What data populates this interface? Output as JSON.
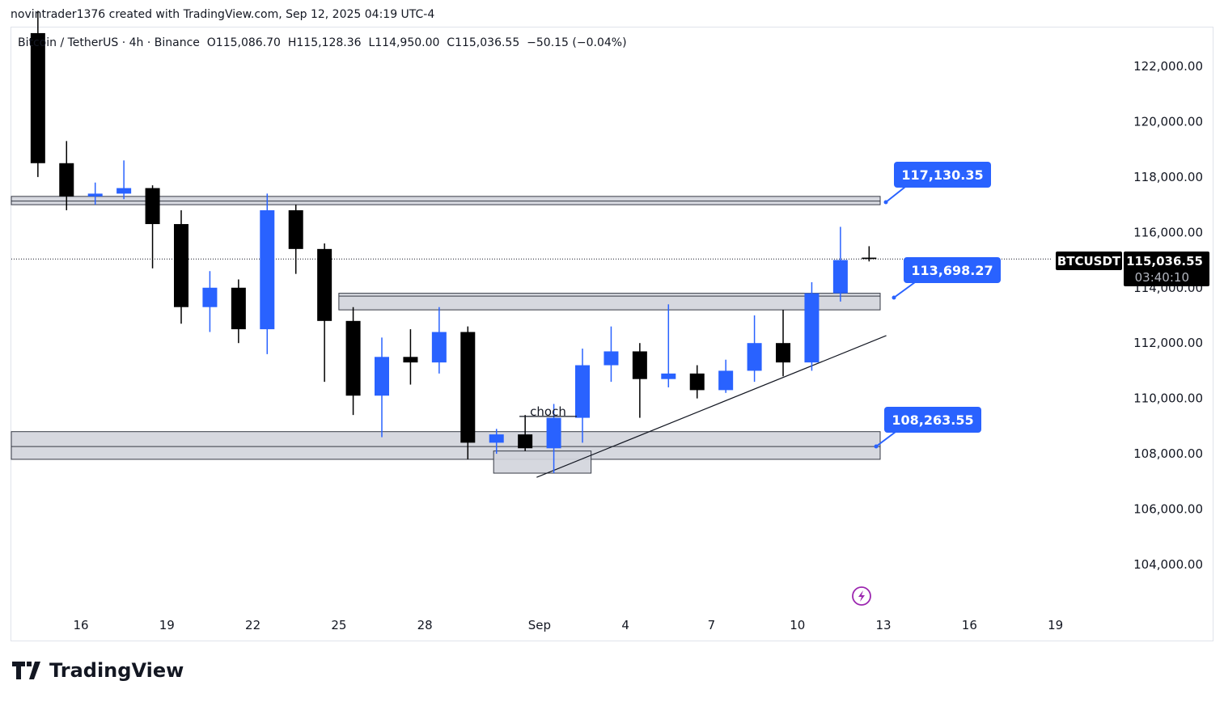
{
  "attribution": "novintrader1376 created with TradingView.com, Sep 12, 2025 04:19 UTC-4",
  "legend": "Bitcoin / TetherUS · 4h · Binance  O115,086.70  H115,128.36  L114,950.00  C115,036.55  −50.15 (−0.04%)",
  "brand": "TradingView",
  "colors": {
    "up": "#2962ff",
    "down": "#000000",
    "callout": "#2962ff",
    "zone": "#d1d4dc",
    "icon": "#9c27b0"
  },
  "chart_data": {
    "type": "candlestick",
    "symbol": "BTCUSDT",
    "interval": "4h (shown aggregated daily)",
    "last_price": "115,036.55",
    "countdown": "03:40:10",
    "y_ticks": [
      "122,000.00",
      "120,000.00",
      "118,000.00",
      "116,000.00",
      "114,000.00",
      "112,000.00",
      "110,000.00",
      "108,000.00",
      "106,000.00",
      "104,000.00"
    ],
    "y_tick_values": [
      122000,
      120000,
      118000,
      116000,
      114000,
      112000,
      110000,
      108000,
      106000,
      104000
    ],
    "x_ticks": [
      {
        "label": "16",
        "day": 16
      },
      {
        "label": "19",
        "day": 19
      },
      {
        "label": "22",
        "day": 22
      },
      {
        "label": "25",
        "day": 25
      },
      {
        "label": "28",
        "day": 28
      },
      {
        "label": "Sep",
        "day": 32
      },
      {
        "label": "4",
        "day": 35
      },
      {
        "label": "7",
        "day": 38
      },
      {
        "label": "10",
        "day": 41
      },
      {
        "label": "13",
        "day": 44
      },
      {
        "label": "16",
        "day": 47
      },
      {
        "label": "19",
        "day": 50
      }
    ],
    "candles": [
      {
        "day": 14,
        "o": 123200,
        "h": 124000,
        "l": 118000,
        "c": 118500
      },
      {
        "day": 15,
        "o": 118500,
        "h": 119300,
        "l": 116800,
        "c": 117300
      },
      {
        "day": 16,
        "o": 117300,
        "h": 117800,
        "l": 117000,
        "c": 117400
      },
      {
        "day": 17,
        "o": 117400,
        "h": 118600,
        "l": 117200,
        "c": 117600
      },
      {
        "day": 18,
        "o": 117600,
        "h": 117700,
        "l": 114700,
        "c": 116300
      },
      {
        "day": 19,
        "o": 116300,
        "h": 116800,
        "l": 112700,
        "c": 113300
      },
      {
        "day": 20,
        "o": 113300,
        "h": 114600,
        "l": 112400,
        "c": 114000
      },
      {
        "day": 21,
        "o": 114000,
        "h": 114300,
        "l": 112000,
        "c": 112500
      },
      {
        "day": 22,
        "o": 112500,
        "h": 117400,
        "l": 111600,
        "c": 116800
      },
      {
        "day": 23,
        "o": 116800,
        "h": 117000,
        "l": 114500,
        "c": 115400
      },
      {
        "day": 24,
        "o": 115400,
        "h": 115600,
        "l": 110600,
        "c": 112800
      },
      {
        "day": 25,
        "o": 112800,
        "h": 113300,
        "l": 109400,
        "c": 110100
      },
      {
        "day": 26,
        "o": 110100,
        "h": 112200,
        "l": 108600,
        "c": 111500
      },
      {
        "day": 27,
        "o": 111500,
        "h": 112500,
        "l": 110500,
        "c": 111300
      },
      {
        "day": 28,
        "o": 111300,
        "h": 113300,
        "l": 110900,
        "c": 112400
      },
      {
        "day": 29,
        "o": 112400,
        "h": 112600,
        "l": 107800,
        "c": 108400
      },
      {
        "day": 30,
        "o": 108400,
        "h": 108900,
        "l": 108000,
        "c": 108700
      },
      {
        "day": 31,
        "o": 108700,
        "h": 109400,
        "l": 108100,
        "c": 108200
      },
      {
        "day": 32,
        "o": 108200,
        "h": 109800,
        "l": 107300,
        "c": 109300
      },
      {
        "day": 33,
        "o": 109300,
        "h": 111800,
        "l": 108400,
        "c": 111200
      },
      {
        "day": 34,
        "o": 111200,
        "h": 112600,
        "l": 110600,
        "c": 111700
      },
      {
        "day": 35,
        "o": 111700,
        "h": 112000,
        "l": 109300,
        "c": 110700
      },
      {
        "day": 36,
        "o": 110700,
        "h": 113400,
        "l": 110400,
        "c": 110900
      },
      {
        "day": 37,
        "o": 110900,
        "h": 111200,
        "l": 110000,
        "c": 110300
      },
      {
        "day": 38,
        "o": 110300,
        "h": 111400,
        "l": 110200,
        "c": 111000
      },
      {
        "day": 39,
        "o": 111000,
        "h": 113000,
        "l": 110600,
        "c": 112000
      },
      {
        "day": 40,
        "o": 112000,
        "h": 113200,
        "l": 110800,
        "c": 111300
      },
      {
        "day": 41,
        "o": 111300,
        "h": 114200,
        "l": 111000,
        "c": 113800
      },
      {
        "day": 42,
        "o": 113800,
        "h": 116200,
        "l": 113500,
        "c": 115000
      },
      {
        "day": 43,
        "o": 115087,
        "h": 115500,
        "l": 114950,
        "c": 115037
      }
    ],
    "zones": [
      {
        "from_day": 13,
        "to_day": 44,
        "top": 117300,
        "bottom": 117000,
        "mid": 117130
      },
      {
        "from_day": 25,
        "to_day": 44,
        "top": 113800,
        "bottom": 113200,
        "mid": 113698
      },
      {
        "from_day": 13,
        "to_day": 44,
        "top": 108800,
        "bottom": 107800,
        "mid": 108263
      },
      {
        "from_day": 30.4,
        "to_day": 33.8,
        "top": 108100,
        "bottom": 107300
      }
    ],
    "callouts": [
      {
        "text": "117,130.35",
        "price": 117130
      },
      {
        "text": "113,698.27",
        "price": 113698
      },
      {
        "text": "108,263.55",
        "price": 108263
      }
    ],
    "trendline": {
      "from": {
        "day": 31.9,
        "price": 107150
      },
      "to": {
        "day": 44.1,
        "price": 112270
      }
    },
    "choch": {
      "text": "choch",
      "from_day": 31.3,
      "to_day": 33.3,
      "price": 109350
    }
  }
}
